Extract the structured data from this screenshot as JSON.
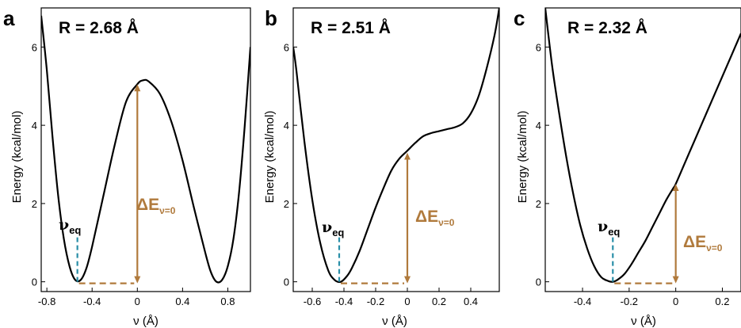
{
  "colors": {
    "curve": "#000000",
    "barrier": "#b07a3c",
    "veq": "#2a8fa8"
  },
  "chart_data": [
    {
      "type": "line",
      "panel_label": "a",
      "title": "R = 2.68 Å",
      "xlabel": "ν (Å)",
      "ylabel": "Energy (kcal/mol)",
      "xlim": [
        -0.85,
        1.0
      ],
      "ylim": [
        -0.25,
        7.0
      ],
      "xticks": [
        -0.8,
        -0.4,
        0,
        0.4,
        0.8
      ],
      "xtick_labels": [
        "-0.8",
        "-0.4",
        "0",
        "0.4",
        "0.8"
      ],
      "yticks": [
        0,
        2,
        4,
        6
      ],
      "ytick_labels": [
        "0",
        "2",
        "4",
        "6"
      ],
      "series": [
        {
          "x": [
            -0.85,
            -0.8,
            -0.75,
            -0.7,
            -0.65,
            -0.6,
            -0.55,
            -0.5,
            -0.45,
            -0.4,
            -0.3,
            -0.2,
            -0.1,
            0.0,
            0.05,
            0.1,
            0.2,
            0.3,
            0.4,
            0.5,
            0.6,
            0.65,
            0.7,
            0.75,
            0.8,
            0.85,
            0.9,
            0.95,
            1.0
          ],
          "y": [
            6.8,
            5.4,
            3.7,
            2.2,
            1.1,
            0.4,
            0.05,
            0.05,
            0.35,
            0.9,
            2.2,
            3.5,
            4.6,
            5.05,
            5.15,
            5.12,
            4.8,
            4.1,
            3.1,
            1.9,
            0.75,
            0.25,
            0.0,
            0.05,
            0.4,
            1.1,
            2.3,
            4.0,
            6.0
          ]
        }
      ],
      "annotations": {
        "veq_label": "ν",
        "veq_sub": "eq",
        "veq_x": -0.53,
        "barrier_label": "ΔE",
        "barrier_sub": "ν=0",
        "barrier_x": 0.0,
        "barrier_value": 5.05
      }
    },
    {
      "type": "line",
      "panel_label": "b",
      "title": "R = 2.51 Å",
      "xlabel": "ν (Å)",
      "ylabel": "Energy (kcal/mol)",
      "xlim": [
        -0.72,
        0.58
      ],
      "ylim": [
        -0.25,
        7.0
      ],
      "xticks": [
        -0.6,
        -0.4,
        -0.2,
        0,
        0.2,
        0.4
      ],
      "xtick_labels": [
        "-0.6",
        "-0.4",
        "-0.2",
        "0",
        "0.2",
        "0.4"
      ],
      "yticks": [
        0,
        2,
        4,
        6
      ],
      "ytick_labels": [
        "0",
        "2",
        "4",
        "6"
      ],
      "series": [
        {
          "x": [
            -0.72,
            -0.7,
            -0.65,
            -0.6,
            -0.55,
            -0.5,
            -0.46,
            -0.42,
            -0.38,
            -0.35,
            -0.3,
            -0.25,
            -0.2,
            -0.15,
            -0.1,
            -0.05,
            0.0,
            0.05,
            0.1,
            0.15,
            0.2,
            0.25,
            0.3,
            0.35,
            0.4,
            0.45,
            0.5,
            0.55,
            0.58
          ],
          "y": [
            6.0,
            5.4,
            3.6,
            2.1,
            1.0,
            0.3,
            0.05,
            0.0,
            0.15,
            0.35,
            0.8,
            1.35,
            1.9,
            2.4,
            2.85,
            3.15,
            3.35,
            3.55,
            3.72,
            3.8,
            3.85,
            3.9,
            3.95,
            4.05,
            4.3,
            4.75,
            5.45,
            6.3,
            7.0
          ]
        }
      ],
      "annotations": {
        "veq_label": "ν",
        "veq_sub": "eq",
        "veq_x": -0.43,
        "barrier_label": "ΔE",
        "barrier_sub": "ν=0",
        "barrier_x": 0.0,
        "barrier_value": 3.3
      }
    },
    {
      "type": "line",
      "panel_label": "c",
      "title": "R = 2.32 Å",
      "xlabel": "ν (Å)",
      "ylabel": "Energy (kcal/mol)",
      "xlim": [
        -0.56,
        0.28
      ],
      "ylim": [
        -0.25,
        7.0
      ],
      "xticks": [
        -0.4,
        -0.2,
        0,
        0.2
      ],
      "xtick_labels": [
        "-0.4",
        "-0.2",
        "0",
        "0.2"
      ],
      "yticks": [
        0,
        2,
        4,
        6
      ],
      "ytick_labels": [
        "0",
        "2",
        "4",
        "6"
      ],
      "series": [
        {
          "x": [
            -0.56,
            -0.53,
            -0.5,
            -0.47,
            -0.44,
            -0.41,
            -0.38,
            -0.35,
            -0.32,
            -0.29,
            -0.27,
            -0.25,
            -0.22,
            -0.19,
            -0.16,
            -0.13,
            -0.1,
            -0.07,
            -0.04,
            -0.01,
            0.0,
            0.04,
            0.08,
            0.12,
            0.16,
            0.2,
            0.24,
            0.28
          ],
          "y": [
            7.0,
            5.5,
            4.3,
            3.2,
            2.25,
            1.45,
            0.85,
            0.4,
            0.12,
            0.02,
            0.0,
            0.05,
            0.2,
            0.45,
            0.75,
            1.05,
            1.4,
            1.75,
            2.1,
            2.4,
            2.5,
            3.05,
            3.6,
            4.15,
            4.7,
            5.25,
            5.8,
            6.35
          ]
        }
      ],
      "annotations": {
        "veq_label": "ν",
        "veq_sub": "eq",
        "veq_x": -0.27,
        "barrier_label": "ΔE",
        "barrier_sub": "ν=0",
        "barrier_x": 0.0,
        "barrier_value": 2.5
      }
    }
  ]
}
